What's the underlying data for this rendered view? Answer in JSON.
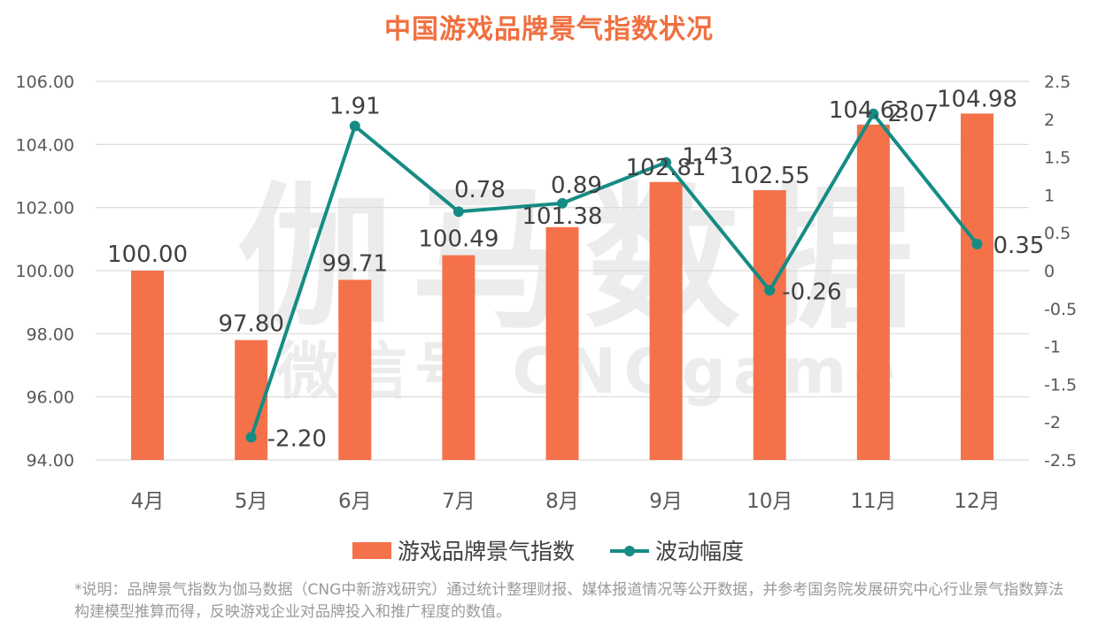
{
  "title": "中国游戏品牌景气指数状况",
  "watermark": {
    "main": "伽马数据",
    "sub": "微信号 CNGgame"
  },
  "note": "*说明：品牌景气指数为伽马数据（CNG中新游戏研究）通过统计整理财报、媒体报道情况等公开数据，并参考国务院发展研究中心行业景气指数算法构建模型推算而得，反映游戏企业对品牌投入和推广程度的数值。",
  "colors": {
    "title": "#f07040",
    "bar": "#f4714a",
    "line": "#148c84",
    "grid": "#d9d9d9",
    "text": "#404040",
    "tick": "#595959"
  },
  "chart_data": {
    "type": "bar",
    "title": "中国游戏品牌景气指数状况",
    "categories": [
      "4月",
      "5月",
      "6月",
      "7月",
      "8月",
      "9月",
      "10月",
      "11月",
      "12月"
    ],
    "series": [
      {
        "name": "游戏品牌景气指数",
        "type": "bar",
        "axis": "left",
        "values": [
          100.0,
          97.8,
          99.71,
          100.49,
          101.38,
          102.81,
          102.55,
          104.63,
          104.98
        ],
        "labels": [
          "100.00",
          "97.80",
          "99.71",
          "100.49",
          "101.38",
          "102.81",
          "102.55",
          "104.63",
          "104.98"
        ]
      },
      {
        "name": "波动幅度",
        "type": "line",
        "axis": "right",
        "values": [
          null,
          -2.2,
          1.91,
          0.78,
          0.89,
          1.43,
          -0.26,
          2.07,
          0.35
        ],
        "labels": [
          null,
          "-2.20",
          "1.91",
          "0.78",
          "0.89",
          "1.43",
          "-0.26",
          "2.07",
          "0.35"
        ]
      }
    ],
    "y_left": {
      "ylim": [
        94,
        106
      ],
      "ticks": [
        "94.00",
        "96.00",
        "98.00",
        "100.00",
        "102.00",
        "104.00",
        "106.00"
      ]
    },
    "y_right": {
      "ylim": [
        -2.5,
        2.5
      ],
      "ticks": [
        "-2.5",
        "-2",
        "-1.5",
        "-1",
        "-0.5",
        "0",
        "0.5",
        "1",
        "1.5",
        "2",
        "2.5"
      ]
    },
    "grid": true,
    "legend": "bottom"
  }
}
